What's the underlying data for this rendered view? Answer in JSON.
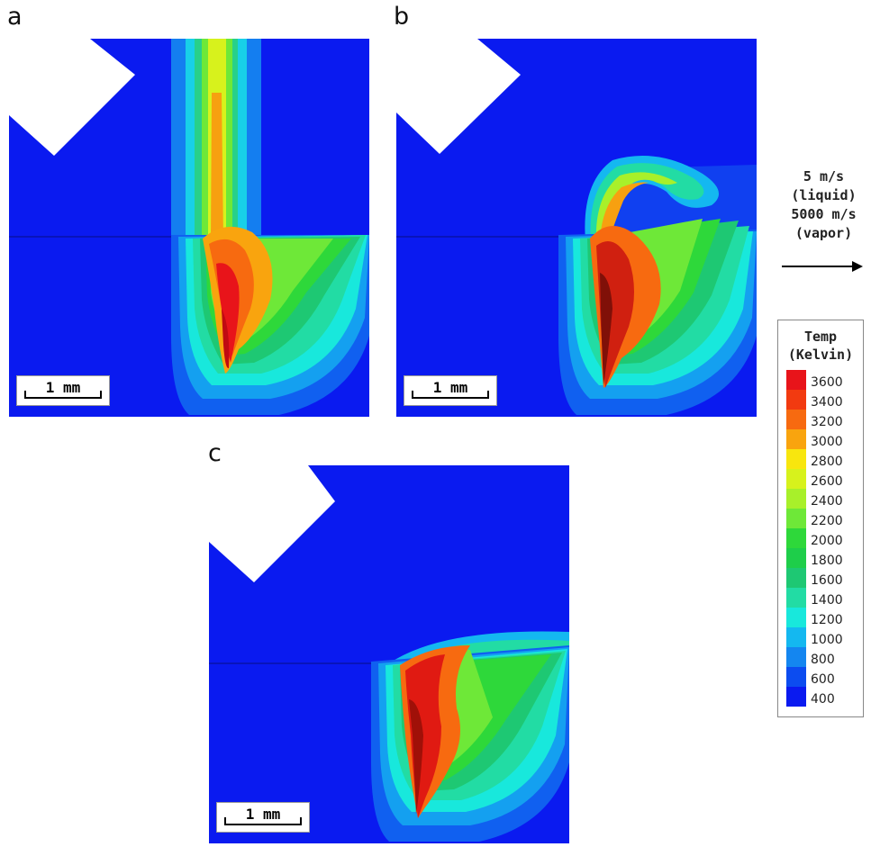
{
  "panels": [
    {
      "letter": "a",
      "scale_label": "1 mm"
    },
    {
      "letter": "b",
      "scale_label": "1 mm"
    },
    {
      "letter": "c",
      "scale_label": "1 mm"
    }
  ],
  "velocity": {
    "liquid_value": "5 m/s",
    "liquid_label": "(liquid)",
    "vapor_value": "5000 m/s",
    "vapor_label": "(vapor)"
  },
  "legend": {
    "title_line1": "Temp",
    "title_line2": "(Kelvin)",
    "levels": [
      "3600",
      "3400",
      "3200",
      "3000",
      "2800",
      "2600",
      "2400",
      "2200",
      "2000",
      "1800",
      "1600",
      "1400",
      "1200",
      "1000",
      "800",
      "600",
      "400"
    ],
    "colors": [
      "#e8141a",
      "#f23a10",
      "#f76a10",
      "#f9a40e",
      "#f8e60e",
      "#d7f21c",
      "#a8f02a",
      "#6ee838",
      "#2ed83a",
      "#1ece4a",
      "#1ec873",
      "#22dca4",
      "#18e8dc",
      "#14b8f0",
      "#1486f0",
      "#0c4cf0",
      "#0a1af0"
    ]
  }
}
